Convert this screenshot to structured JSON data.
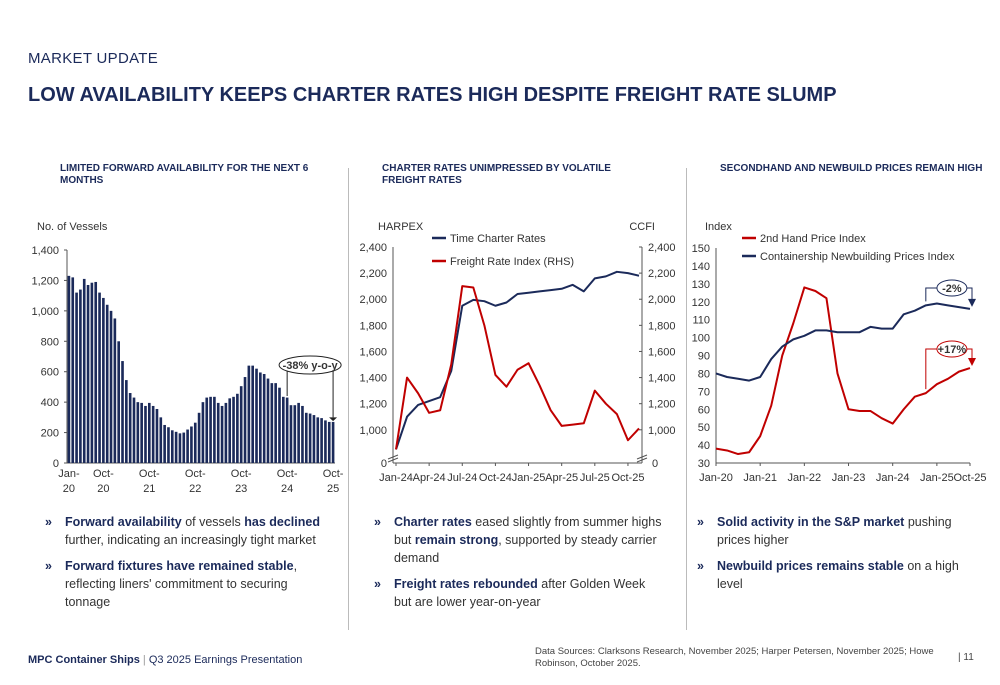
{
  "header": {
    "kicker": "MARKET UPDATE",
    "title": "LOW AVAILABILITY KEEPS CHARTER RATES HIGH DESPITE FREIGHT RATE SLUMP"
  },
  "colors": {
    "navy": "#1b2a5a",
    "red": "#c00000"
  },
  "columns": [
    {
      "heading": "LIMITED FORWARD AVAILABILITY FOR THE NEXT 6 MONTHS",
      "bullets": [
        {
          "bold1": "Forward availability",
          "t1": " of vessels ",
          "bold2": "has declined",
          "t2": " further, indicating an increasingly tight market"
        },
        {
          "bold1": "Forward fixtures have remained stable",
          "t1": ", reflecting liners' commitment to securing tonnage",
          "bold2": "",
          "t2": ""
        }
      ]
    },
    {
      "heading": "CHARTER RATES UNIMPRESSED BY VOLATILE FREIGHT RATES",
      "bullets": [
        {
          "bold1": "Charter rates",
          "t1": " eased slightly from summer highs but ",
          "bold2": "remain strong",
          "t2": ", supported by steady carrier demand"
        },
        {
          "bold1": "Freight rates rebounded",
          "t1": " after Golden Week but are lower year-on-year",
          "bold2": "",
          "t2": ""
        }
      ]
    },
    {
      "heading": "SECONDHAND AND NEWBUILD PRICES REMAIN HIGH",
      "bullets": [
        {
          "bold1": "Solid activity in the S&P market",
          "t1": "  pushing prices higher",
          "bold2": "",
          "t2": ""
        },
        {
          "bold1": "Newbuild prices remains stable",
          "t1": " on a high level",
          "bold2": "",
          "t2": ""
        }
      ]
    }
  ],
  "chart_data": [
    {
      "type": "bar",
      "ylabel": "No. of Vessels",
      "ylim": [
        0,
        1400
      ],
      "yticks": [
        0,
        200,
        400,
        600,
        800,
        1000,
        1200,
        1400
      ],
      "xticks": [
        {
          "i": 0,
          "l1": "Jan-",
          "l2": "20"
        },
        {
          "i": 9,
          "l1": "Oct-",
          "l2": "20"
        },
        {
          "i": 21,
          "l1": "Oct-",
          "l2": "21"
        },
        {
          "i": 33,
          "l1": "Oct-",
          "l2": "22"
        },
        {
          "i": 45,
          "l1": "Oct-",
          "l2": "23"
        },
        {
          "i": 57,
          "l1": "Oct-",
          "l2": "24"
        },
        {
          "i": 69,
          "l1": "Oct-",
          "l2": "25"
        }
      ],
      "annotation": "-38% y-o-y",
      "color": "#1b2a5a",
      "values": [
        1230,
        1220,
        1120,
        1140,
        1210,
        1170,
        1185,
        1190,
        1120,
        1085,
        1040,
        1000,
        950,
        800,
        670,
        545,
        460,
        430,
        400,
        395,
        375,
        395,
        375,
        355,
        300,
        250,
        235,
        215,
        205,
        195,
        200,
        220,
        240,
        265,
        330,
        400,
        430,
        435,
        435,
        395,
        375,
        395,
        425,
        435,
        455,
        505,
        565,
        640,
        640,
        620,
        595,
        585,
        555,
        525,
        525,
        495,
        435,
        430,
        380,
        380,
        395,
        375,
        330,
        325,
        315,
        300,
        295,
        280,
        270,
        270
      ]
    },
    {
      "type": "line",
      "ylabel_left": "HARPEX",
      "ylabel_right": "CCFI",
      "ylim": [
        0,
        2400
      ],
      "yticks": [
        1000,
        1200,
        1400,
        1600,
        1800,
        2000,
        2200,
        2400
      ],
      "xticks": [
        "Jan-24",
        "Apr-24",
        "Jul-24",
        "Oct-24",
        "Jan-25",
        "Apr-25",
        "Jul-25",
        "Oct-25"
      ],
      "x": [
        "Jan-24",
        "Feb-24",
        "Mar-24",
        "Apr-24",
        "May-24",
        "Jun-24",
        "Jul-24",
        "Aug-24",
        "Sep-24",
        "Oct-24",
        "Nov-24",
        "Dec-24",
        "Jan-25",
        "Feb-25",
        "Mar-25",
        "Apr-25",
        "May-25",
        "Jun-25",
        "Jul-25",
        "Aug-25",
        "Sep-25",
        "Oct-25",
        "Nov-25"
      ],
      "series": [
        {
          "name": "Time Charter Rates",
          "color": "#1b2a5a",
          "values": [
            850,
            1100,
            1190,
            1220,
            1250,
            1450,
            1950,
            1995,
            1985,
            1950,
            1975,
            2040,
            2050,
            2060,
            2070,
            2080,
            2110,
            2060,
            2160,
            2175,
            2210,
            2200,
            2180
          ]
        },
        {
          "name": "Freight Rate Index (RHS)",
          "color": "#c00000",
          "values": [
            850,
            1400,
            1280,
            1130,
            1150,
            1500,
            2100,
            2090,
            1800,
            1420,
            1330,
            1460,
            1510,
            1340,
            1150,
            1030,
            1040,
            1050,
            1300,
            1200,
            1120,
            920,
            1010
          ]
        }
      ]
    },
    {
      "type": "line",
      "ylabel": "Index",
      "ylim": [
        30,
        150
      ],
      "yticks": [
        30,
        40,
        50,
        60,
        70,
        80,
        90,
        100,
        110,
        120,
        130,
        140,
        150
      ],
      "xticks": [
        "Jan-20",
        "Jan-21",
        "Jan-22",
        "Jan-23",
        "Jan-24",
        "Jan-25",
        "Oct-25"
      ],
      "x": [
        "Jan-20",
        "Apr-20",
        "Jul-20",
        "Oct-20",
        "Jan-21",
        "Apr-21",
        "Jul-21",
        "Oct-21",
        "Jan-22",
        "Apr-22",
        "Jul-22",
        "Oct-22",
        "Jan-23",
        "Apr-23",
        "Jul-23",
        "Oct-23",
        "Jan-24",
        "Apr-24",
        "Jul-24",
        "Oct-24",
        "Jan-25",
        "Apr-25",
        "Jul-25",
        "Oct-25"
      ],
      "series": [
        {
          "name": "2nd Hand Price Index",
          "color": "#c00000",
          "values": [
            38,
            37,
            35,
            36,
            45,
            62,
            90,
            108,
            128,
            126,
            122,
            80,
            60,
            59,
            59,
            55,
            52,
            60,
            67,
            69,
            74,
            77,
            81,
            83
          ],
          "annotation": "+17%"
        },
        {
          "name": "Containership Newbuilding Prices Index",
          "color": "#1b2a5a",
          "values": [
            80,
            78,
            77,
            76,
            78,
            88,
            95,
            99,
            101,
            104,
            104,
            103,
            103,
            103,
            106,
            105,
            105,
            113,
            115,
            118,
            119,
            118,
            117,
            116
          ],
          "annotation": "-2%"
        }
      ]
    }
  ],
  "footer": {
    "brand": "MPC Container Ships",
    "sep": "|",
    "presentation": "Q3 2025 Earnings Presentation",
    "sources": "Data Sources: Clarksons Research, November 2025; Harper Petersen, November 2025; Howe Robinson, October 2025.",
    "page": "| 11"
  }
}
